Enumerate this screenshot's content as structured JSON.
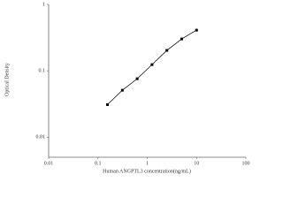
{
  "chart_data": {
    "type": "scatter",
    "x_label": "Human ANGPTL3 concentration(ng/mL)",
    "y_label": "Optical Density",
    "x": [
      0.156,
      0.3125,
      0.625,
      1.25,
      2.5,
      5,
      10
    ],
    "values": [
      0.031,
      0.051,
      0.076,
      0.124,
      0.203,
      0.302,
      0.41
    ],
    "color": "#000000",
    "log_x": true,
    "log_y": true,
    "xlim": [
      0.01,
      100
    ],
    "xticks": [
      0.01,
      0.1,
      1,
      10,
      100
    ],
    "ylim": [
      0.005,
      1
    ],
    "yticks": [
      0.01,
      0.1,
      1
    ]
  }
}
